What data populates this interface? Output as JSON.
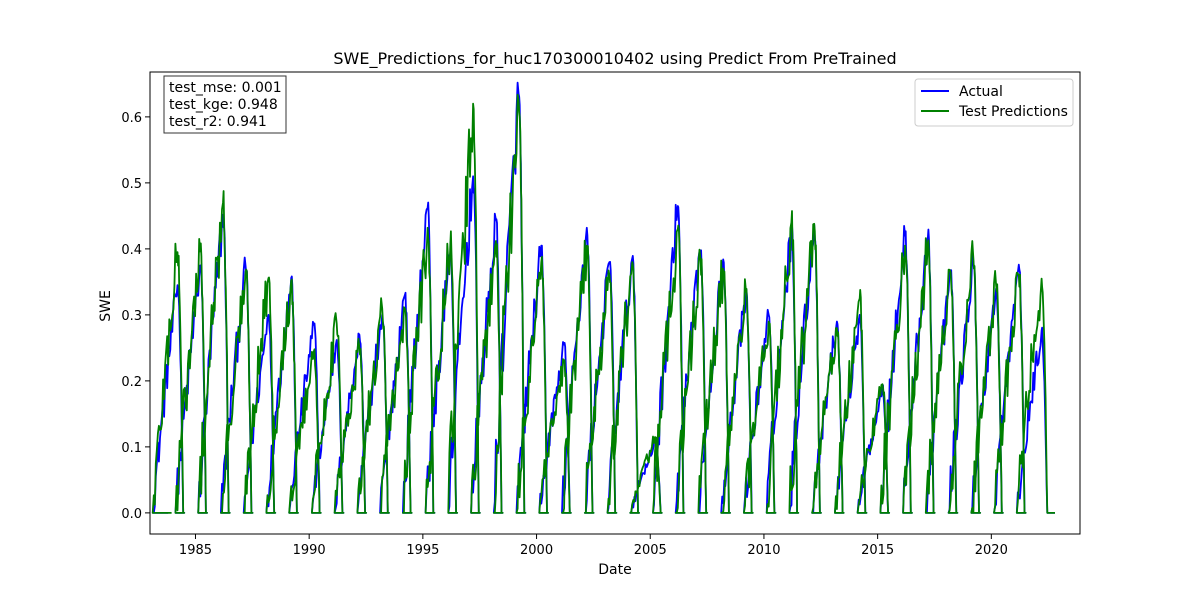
{
  "chart_data": {
    "type": "line",
    "title": "SWE_Predictions_for_huc170300010402 using Predict From PreTrained",
    "xlabel": "Date",
    "ylabel": "SWE",
    "xlim": [
      1983.0,
      2023.9
    ],
    "ylim": [
      -0.032,
      0.668
    ],
    "x_ticks": [
      1985,
      1990,
      1995,
      2000,
      2005,
      2010,
      2015,
      2020
    ],
    "x_tick_labels": [
      "1985",
      "1990",
      "1995",
      "2000",
      "2005",
      "2010",
      "2015",
      "2020"
    ],
    "y_ticks": [
      0.0,
      0.1,
      0.2,
      0.3,
      0.4,
      0.5,
      0.6
    ],
    "y_tick_labels": [
      "0.0",
      "0.1",
      "0.2",
      "0.3",
      "0.4",
      "0.5",
      "0.6"
    ],
    "grid": false,
    "legend_position": "upper right",
    "metrics": [
      "test_mse: 0.001",
      "test_kge: 0.948",
      "test_r2: 0.941"
    ],
    "series": [
      {
        "name": "Actual",
        "color": "#0000ff",
        "years": [
          1984,
          1985,
          1986,
          1987,
          1988,
          1989,
          1990,
          1991,
          1992,
          1993,
          1994,
          1995,
          1996,
          1997,
          1998,
          1999,
          2000,
          2001,
          2002,
          2003,
          2004,
          2005,
          2006,
          2007,
          2008,
          2009,
          2010,
          2011,
          2012,
          2013,
          2014,
          2015,
          2016,
          2017,
          2018,
          2019,
          2020,
          2021,
          2022
        ],
        "peak_swe": [
          0.345,
          0.375,
          0.452,
          0.372,
          0.3,
          0.356,
          0.285,
          0.262,
          0.27,
          0.3,
          0.33,
          0.462,
          0.395,
          0.51,
          0.444,
          0.635,
          0.405,
          0.255,
          0.432,
          0.38,
          0.386,
          0.108,
          0.465,
          0.396,
          0.384,
          0.33,
          0.3,
          0.43,
          0.437,
          0.29,
          0.3,
          0.19,
          0.42,
          0.418,
          0.365,
          0.38,
          0.34,
          0.376,
          0.276
        ]
      },
      {
        "name": "Test Predictions",
        "color": "#008000",
        "years": [
          1984,
          1985,
          1986,
          1987,
          1988,
          1989,
          1990,
          1991,
          1992,
          1993,
          1994,
          1995,
          1996,
          1997,
          1998,
          1999,
          2000,
          2001,
          2002,
          2003,
          2004,
          2005,
          2006,
          2007,
          2008,
          2009,
          2010,
          2011,
          2012,
          2013,
          2014,
          2015,
          2016,
          2017,
          2018,
          2019,
          2020,
          2021,
          2022
        ],
        "peak_swe": [
          0.395,
          0.396,
          0.47,
          0.366,
          0.356,
          0.352,
          0.245,
          0.287,
          0.25,
          0.31,
          0.31,
          0.432,
          0.41,
          0.62,
          0.412,
          0.625,
          0.38,
          0.228,
          0.405,
          0.36,
          0.38,
          0.115,
          0.43,
          0.385,
          0.37,
          0.335,
          0.29,
          0.44,
          0.438,
          0.28,
          0.325,
          0.195,
          0.405,
          0.41,
          0.365,
          0.385,
          0.345,
          0.36,
          0.355
        ]
      }
    ]
  }
}
